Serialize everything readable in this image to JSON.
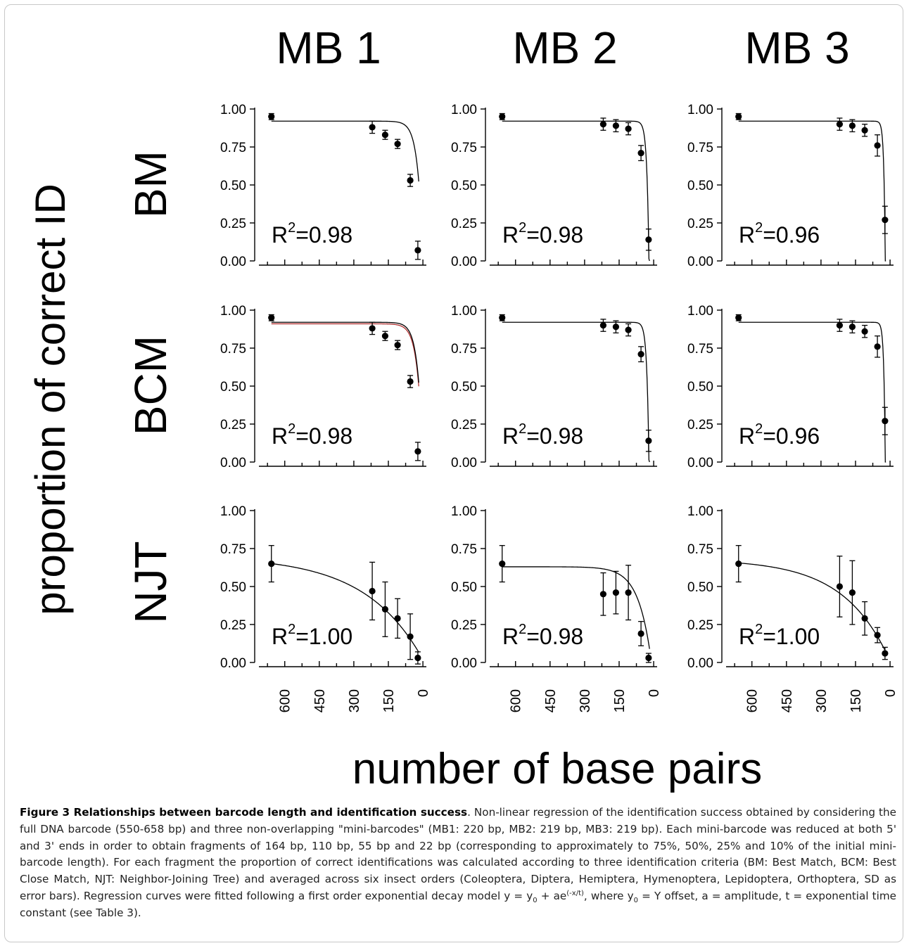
{
  "figure": {
    "column_labels": [
      "MB 1",
      "MB 2",
      "MB 3"
    ],
    "row_labels": [
      "BM",
      "BCM",
      "NJT"
    ],
    "y_axis_title": "proportion of correct ID",
    "x_axis_title": "number of base pairs"
  },
  "chart_data": [
    {
      "type": "scatter",
      "panel": "BM / MB 1",
      "x": [
        658,
        220,
        164,
        110,
        55,
        22
      ],
      "y": [
        0.95,
        0.88,
        0.83,
        0.77,
        0.53,
        0.07
      ],
      "err": [
        0.02,
        0.04,
        0.03,
        0.03,
        0.04,
        0.06
      ],
      "fit": {
        "y0": 0.92,
        "a": -0.9,
        "t": 22
      },
      "r2_label": "R",
      "r2_exp": "2",
      "r2_value": "=0.98",
      "xlim": [
        700,
        -15
      ],
      "ylim": [
        0,
        1
      ],
      "xticks": [
        "600",
        "450",
        "300",
        "150",
        "0"
      ],
      "yticks": [
        "1.00",
        "0.75",
        "0.50",
        "0.25",
        "0.00"
      ]
    },
    {
      "type": "scatter",
      "panel": "BM / MB 2",
      "x": [
        658,
        219,
        164,
        110,
        55,
        22
      ],
      "y": [
        0.95,
        0.9,
        0.89,
        0.87,
        0.71,
        0.14
      ],
      "err": [
        0.02,
        0.04,
        0.04,
        0.04,
        0.05,
        0.07
      ],
      "fit": {
        "y0": 0.92,
        "a": -9.0,
        "t": 9
      },
      "r2_label": "R",
      "r2_exp": "2",
      "r2_value": "=0.98",
      "xlim": [
        700,
        -15
      ],
      "ylim": [
        0,
        1
      ],
      "xticks": [
        "600",
        "450",
        "300",
        "150",
        "0"
      ],
      "yticks": [
        "1.00",
        "0.75",
        "0.50",
        "0.25",
        "0.00"
      ]
    },
    {
      "type": "scatter",
      "panel": "BM / MB 3",
      "x": [
        658,
        219,
        164,
        110,
        55,
        22
      ],
      "y": [
        0.95,
        0.9,
        0.89,
        0.86,
        0.76,
        0.27
      ],
      "err": [
        0.02,
        0.04,
        0.04,
        0.04,
        0.07,
        0.09
      ],
      "fit": {
        "y0": 0.92,
        "a": -30,
        "t": 6
      },
      "r2_label": "R",
      "r2_exp": "2",
      "r2_value": "=0.96",
      "xlim": [
        700,
        -15
      ],
      "ylim": [
        0,
        1
      ],
      "xticks": [
        "600",
        "450",
        "300",
        "150",
        "0"
      ],
      "yticks": [
        "1.00",
        "0.75",
        "0.50",
        "0.25",
        "0.00"
      ]
    },
    {
      "type": "scatter",
      "panel": "BCM / MB 1",
      "x": [
        658,
        220,
        164,
        110,
        55,
        22
      ],
      "y": [
        0.95,
        0.88,
        0.83,
        0.77,
        0.53,
        0.07
      ],
      "err": [
        0.02,
        0.04,
        0.03,
        0.03,
        0.04,
        0.06
      ],
      "fit": {
        "y0": 0.92,
        "a": -0.9,
        "t": 22
      },
      "fit2": {
        "y0": 0.91,
        "a": -0.9,
        "t": 23,
        "color": "#b03030"
      },
      "r2_label": "R",
      "r2_exp": "2",
      "r2_value": "=0.98",
      "xlim": [
        700,
        -15
      ],
      "ylim": [
        0,
        1
      ],
      "xticks": [
        "600",
        "450",
        "300",
        "150",
        "0"
      ],
      "yticks": [
        "1.00",
        "0.75",
        "0.50",
        "0.25",
        "0.00"
      ]
    },
    {
      "type": "scatter",
      "panel": "BCM / MB 2",
      "x": [
        658,
        219,
        164,
        110,
        55,
        22
      ],
      "y": [
        0.95,
        0.9,
        0.89,
        0.87,
        0.71,
        0.14
      ],
      "err": [
        0.02,
        0.04,
        0.04,
        0.04,
        0.05,
        0.07
      ],
      "fit": {
        "y0": 0.92,
        "a": -9.0,
        "t": 9
      },
      "r2_label": "R",
      "r2_exp": "2",
      "r2_value": "=0.98",
      "xlim": [
        700,
        -15
      ],
      "ylim": [
        0,
        1
      ],
      "xticks": [
        "600",
        "450",
        "300",
        "150",
        "0"
      ],
      "yticks": [
        "1.00",
        "0.75",
        "0.50",
        "0.25",
        "0.00"
      ]
    },
    {
      "type": "scatter",
      "panel": "BCM / MB 3",
      "x": [
        658,
        219,
        164,
        110,
        55,
        22
      ],
      "y": [
        0.95,
        0.9,
        0.89,
        0.86,
        0.76,
        0.27
      ],
      "err": [
        0.02,
        0.04,
        0.04,
        0.04,
        0.07,
        0.09
      ],
      "fit": {
        "y0": 0.92,
        "a": -30,
        "t": 6
      },
      "r2_label": "R",
      "r2_exp": "2",
      "r2_value": "=0.96",
      "xlim": [
        700,
        -15
      ],
      "ylim": [
        0,
        1
      ],
      "xticks": [
        "600",
        "450",
        "300",
        "150",
        "0"
      ],
      "yticks": [
        "1.00",
        "0.75",
        "0.50",
        "0.25",
        "0.00"
      ]
    },
    {
      "type": "scatter",
      "panel": "NJT / MB 1",
      "x": [
        658,
        220,
        164,
        110,
        55,
        22
      ],
      "y": [
        0.65,
        0.47,
        0.35,
        0.29,
        0.17,
        0.03
      ],
      "err": [
        0.12,
        0.19,
        0.18,
        0.13,
        0.15,
        0.04
      ],
      "fit": {
        "y0": 0.7,
        "a": -0.68,
        "t": 250
      },
      "r2_label": "R",
      "r2_exp": "2",
      "r2_value": "=1.00",
      "xlim": [
        700,
        -15
      ],
      "ylim": [
        0,
        1
      ],
      "xticks": [
        "600",
        "450",
        "300",
        "150",
        "0"
      ],
      "yticks": [
        "1.00",
        "0.75",
        "0.50",
        "0.25",
        "0.00"
      ]
    },
    {
      "type": "scatter",
      "panel": "NJT / MB 2",
      "x": [
        658,
        219,
        164,
        110,
        55,
        22
      ],
      "y": [
        0.65,
        0.45,
        0.46,
        0.46,
        0.19,
        0.03
      ],
      "err": [
        0.12,
        0.14,
        0.14,
        0.18,
        0.08,
        0.03
      ],
      "fit": {
        "y0": 0.63,
        "a": -0.75,
        "t": 55
      },
      "r2_label": "R",
      "r2_exp": "2",
      "r2_value": "=0.98",
      "xlim": [
        700,
        -15
      ],
      "ylim": [
        0,
        1
      ],
      "xticks": [
        "600",
        "450",
        "300",
        "150",
        "0"
      ],
      "yticks": [
        "1.00",
        "0.75",
        "0.50",
        "0.25",
        "0.00"
      ]
    },
    {
      "type": "scatter",
      "panel": "NJT / MB 3",
      "x": [
        658,
        219,
        164,
        110,
        55,
        22
      ],
      "y": [
        0.65,
        0.5,
        0.46,
        0.29,
        0.18,
        0.06
      ],
      "err": [
        0.12,
        0.2,
        0.21,
        0.11,
        0.05,
        0.04
      ],
      "fit": {
        "y0": 0.68,
        "a": -0.67,
        "t": 200
      },
      "r2_label": "R",
      "r2_exp": "2",
      "r2_value": "=1.00",
      "xlim": [
        700,
        -15
      ],
      "ylim": [
        0,
        1
      ],
      "xticks": [
        "600",
        "450",
        "300",
        "150",
        "0"
      ],
      "yticks": [
        "1.00",
        "0.75",
        "0.50",
        "0.25",
        "0.00"
      ]
    }
  ],
  "caption": {
    "label": "Figure 3 Relationships between barcode length and identification success",
    "text_1": ". Non-linear regression of the identification success obtained by considering the full DNA barcode (550-658 bp) and three non-overlapping \"mini-barcodes\" (MB1: 220 bp, MB2: 219 bp, MB3: 219 bp). Each mini-barcode was reduced at both 5' and 3' ends in order to obtain fragments of 164 bp, 110 bp, 55 bp and 22 bp (corresponding to approximately to 75%, 50%, 25% and 10% of the initial mini-barcode length). For each fragment the proportion of correct identifications was calculated according to three identification criteria (BM: Best Match, BCM: Best Close Match, NJT: Neighbor-Joining Tree) and averaged across six insect orders (Coleoptera, Diptera, Hemiptera, Hymenoptera, Lepidoptera, Orthoptera, SD as error bars). Regression curves were fitted following a first order exponential decay model y = y",
    "sub_1": "0",
    "text_2": " + ae",
    "sup_1": "(-x/t)",
    "text_3": ", where y",
    "sub_2": "0",
    "text_4": " = Y offset, a = amplitude, t = exponential time constant (see Table 3)."
  }
}
